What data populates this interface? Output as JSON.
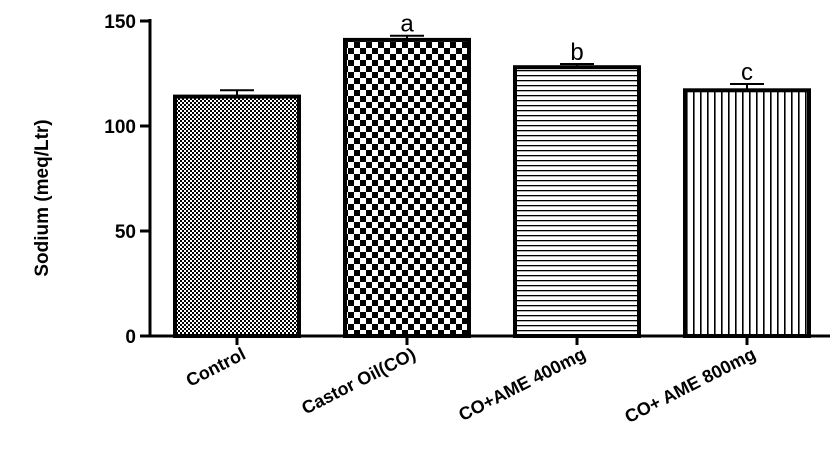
{
  "chart_data": {
    "type": "bar",
    "title": "",
    "xlabel": "",
    "ylabel": "Sodium (meq/Ltr)",
    "ylim": [
      0,
      150
    ],
    "yticks": [
      0,
      50,
      100,
      150
    ],
    "grid": false,
    "categories": [
      "Control",
      "Castor Oil(CO)",
      "CO+AME 400mg",
      "CO+ AME 800mg"
    ],
    "values": [
      114,
      141,
      128,
      117
    ],
    "errors": [
      3,
      2,
      1.5,
      3
    ],
    "annotations": [
      "",
      "a",
      "b",
      "c"
    ],
    "patterns": [
      "fine-checker",
      "checker",
      "horizontal-lines",
      "vertical-lines"
    ]
  }
}
